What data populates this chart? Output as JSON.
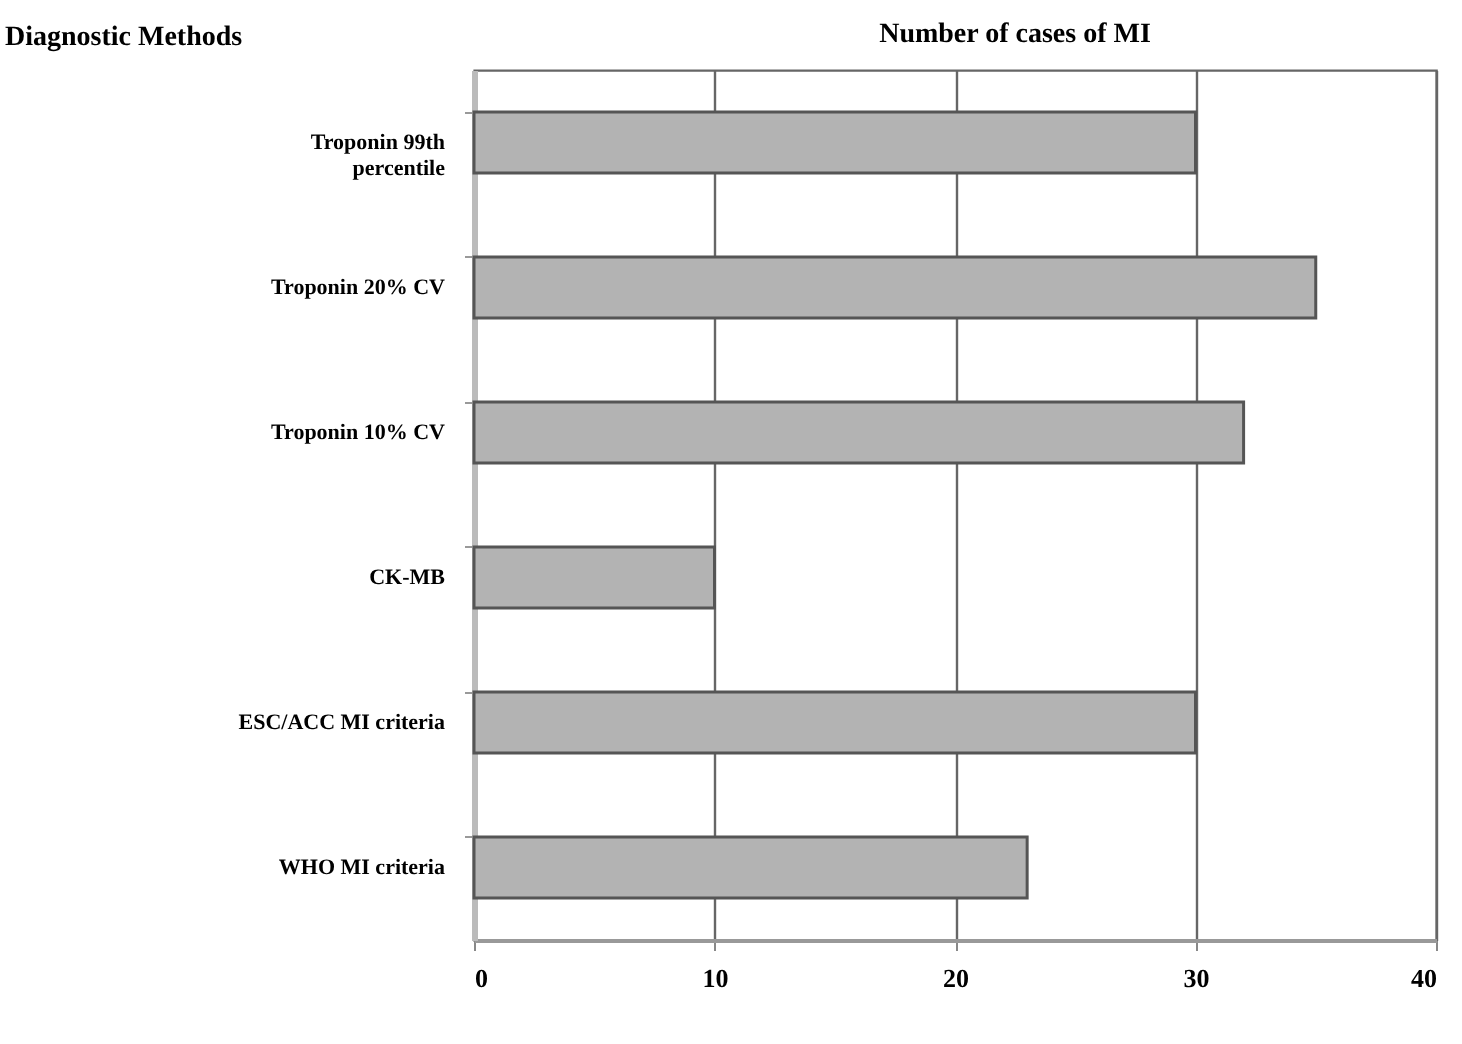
{
  "chart_data": {
    "type": "bar",
    "orientation": "horizontal",
    "title": "Number of cases of MI",
    "ylabel": "Diagnostic Methods",
    "categories": [
      "Troponin 99th percentile",
      "Troponin 20% CV",
      "Troponin 10% CV",
      "CK-MB",
      "ESC/ACC MI criteria",
      "WHO MI criteria"
    ],
    "values": [
      30,
      35,
      32,
      10,
      30,
      23
    ],
    "color": "#b3b3b3",
    "xlim": [
      0,
      40
    ],
    "xticks": [
      0,
      10,
      20,
      30,
      40
    ],
    "grid": "x"
  }
}
